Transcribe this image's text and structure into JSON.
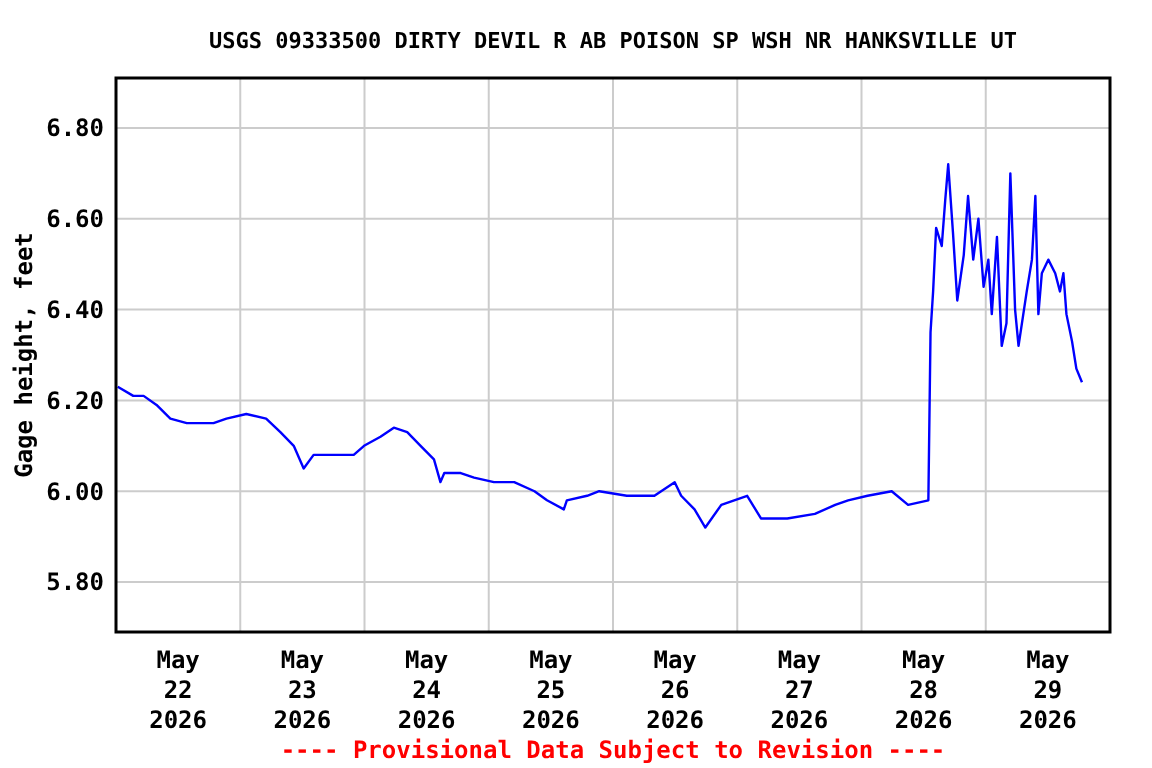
{
  "chart_data": {
    "type": "line",
    "title": "USGS 09333500 DIRTY DEVIL R AB POISON SP WSH NR HANKSVILLE UT",
    "ylabel": "Gage height, feet",
    "annotations": [
      "---- Provisional Data Subject to Revision ----"
    ],
    "xlim": [
      "2026-05-22T00:00",
      "2026-05-30T00:00"
    ],
    "xticks": [
      {
        "value": "2026-05-22T12:00",
        "label": "May\n22\n2026"
      },
      {
        "value": "2026-05-23T00:00",
        "label": null
      },
      {
        "value": "2026-05-23T12:00",
        "label": "May\n23\n2026"
      },
      {
        "value": "2026-05-24T00:00",
        "label": null
      },
      {
        "value": "2026-05-24T12:00",
        "label": "May\n24\n2026"
      },
      {
        "value": "2026-05-25T00:00",
        "label": null
      },
      {
        "value": "2026-05-25T12:00",
        "label": "May\n25\n2026"
      },
      {
        "value": "2026-05-26T00:00",
        "label": null
      },
      {
        "value": "2026-05-26T12:00",
        "label": "May\n26\n2026"
      },
      {
        "value": "2026-05-27T00:00",
        "label": null
      },
      {
        "value": "2026-05-27T12:00",
        "label": "May\n27\n2026"
      },
      {
        "value": "2026-05-28T00:00",
        "label": null
      },
      {
        "value": "2026-05-28T12:00",
        "label": "May\n28\n2026"
      },
      {
        "value": "2026-05-29T00:00",
        "label": null
      },
      {
        "value": "2026-05-29T12:00",
        "label": "May\n29\n2026"
      }
    ],
    "ylim": [
      5.69,
      6.91
    ],
    "yticks": [
      {
        "value": 5.8,
        "label": "5.80"
      },
      {
        "value": 6.0,
        "label": "6.00"
      },
      {
        "value": 6.2,
        "label": "6.20"
      },
      {
        "value": 6.4,
        "label": "6.40"
      },
      {
        "value": 6.6,
        "label": "6.60"
      },
      {
        "value": 6.8,
        "label": "6.80"
      }
    ],
    "grid": true,
    "line_style": "solid",
    "marker": "none",
    "series": [
      {
        "color": "#0000ff",
        "x": [
          "2026-05-22T00:20",
          "2026-05-22T03:20",
          "2026-05-22T05:20",
          "2026-05-22T07:50",
          "2026-05-22T10:30",
          "2026-05-22T13:40",
          "2026-05-22T18:50",
          "2026-05-22T21:20",
          "2026-05-23T01:10",
          "2026-05-23T05:00",
          "2026-05-23T07:45",
          "2026-05-23T10:20",
          "2026-05-23T12:15",
          "2026-05-23T14:10",
          "2026-05-23T18:05",
          "2026-05-23T21:55",
          "2026-05-23T23:55",
          "2026-05-24T03:05",
          "2026-05-24T05:40",
          "2026-05-24T08:15",
          "2026-05-24T10:50",
          "2026-05-24T13:25",
          "2026-05-24T14:40",
          "2026-05-24T15:25",
          "2026-05-24T18:35",
          "2026-05-24T21:10",
          "2026-05-25T01:00",
          "2026-05-25T04:55",
          "2026-05-25T08:50",
          "2026-05-25T11:15",
          "2026-05-25T14:30",
          "2026-05-25T15:05",
          "2026-05-25T19:00",
          "2026-05-25T21:20",
          "2026-05-26T02:40",
          "2026-05-26T08:00",
          "2026-05-26T11:55",
          "2026-05-26T13:10",
          "2026-05-26T15:45",
          "2026-05-26T17:50",
          "2026-05-26T20:55",
          "2026-05-27T01:55",
          "2026-05-27T04:35",
          "2026-05-27T09:40",
          "2026-05-27T15:00",
          "2026-05-27T18:55",
          "2026-05-27T21:25",
          "2026-05-28T01:10",
          "2026-05-28T05:50",
          "2026-05-28T09:00",
          "2026-05-28T12:55",
          "2026-05-28T13:20",
          "2026-05-28T13:50",
          "2026-05-28T14:25",
          "2026-05-28T15:30",
          "2026-05-28T16:10",
          "2026-05-28T16:45",
          "2026-05-28T17:40",
          "2026-05-28T18:30",
          "2026-05-28T19:45",
          "2026-05-28T20:35",
          "2026-05-28T21:35",
          "2026-05-28T22:35",
          "2026-05-28T23:35",
          "2026-05-29T00:30",
          "2026-05-29T01:10",
          "2026-05-29T02:10",
          "2026-05-29T03:05",
          "2026-05-29T04:00",
          "2026-05-29T04:45",
          "2026-05-29T05:40",
          "2026-05-29T06:20",
          "2026-05-29T07:55",
          "2026-05-29T08:55",
          "2026-05-29T09:35",
          "2026-05-29T10:10",
          "2026-05-29T10:50",
          "2026-05-29T12:05",
          "2026-05-29T13:25",
          "2026-05-29T14:20",
          "2026-05-29T15:00",
          "2026-05-29T15:35",
          "2026-05-29T16:40",
          "2026-05-29T17:30",
          "2026-05-29T18:35"
        ],
        "values": [
          6.23,
          6.21,
          6.21,
          6.19,
          6.16,
          6.15,
          6.15,
          6.16,
          6.17,
          6.16,
          6.13,
          6.1,
          6.05,
          6.08,
          6.08,
          6.08,
          6.1,
          6.12,
          6.14,
          6.13,
          6.1,
          6.07,
          6.02,
          6.04,
          6.04,
          6.03,
          6.02,
          6.02,
          6.0,
          5.98,
          5.96,
          5.98,
          5.99,
          6.0,
          5.99,
          5.99,
          6.02,
          5.99,
          5.96,
          5.92,
          5.97,
          5.99,
          5.94,
          5.94,
          5.95,
          5.97,
          5.98,
          5.99,
          6.0,
          5.97,
          5.98,
          6.35,
          6.44,
          6.58,
          6.54,
          6.64,
          6.72,
          6.57,
          6.42,
          6.52,
          6.65,
          6.51,
          6.6,
          6.45,
          6.51,
          6.39,
          6.56,
          6.32,
          6.37,
          6.7,
          6.4,
          6.32,
          6.44,
          6.51,
          6.65,
          6.39,
          6.48,
          6.51,
          6.48,
          6.44,
          6.48,
          6.39,
          6.33,
          6.27,
          6.24
        ]
      }
    ]
  }
}
